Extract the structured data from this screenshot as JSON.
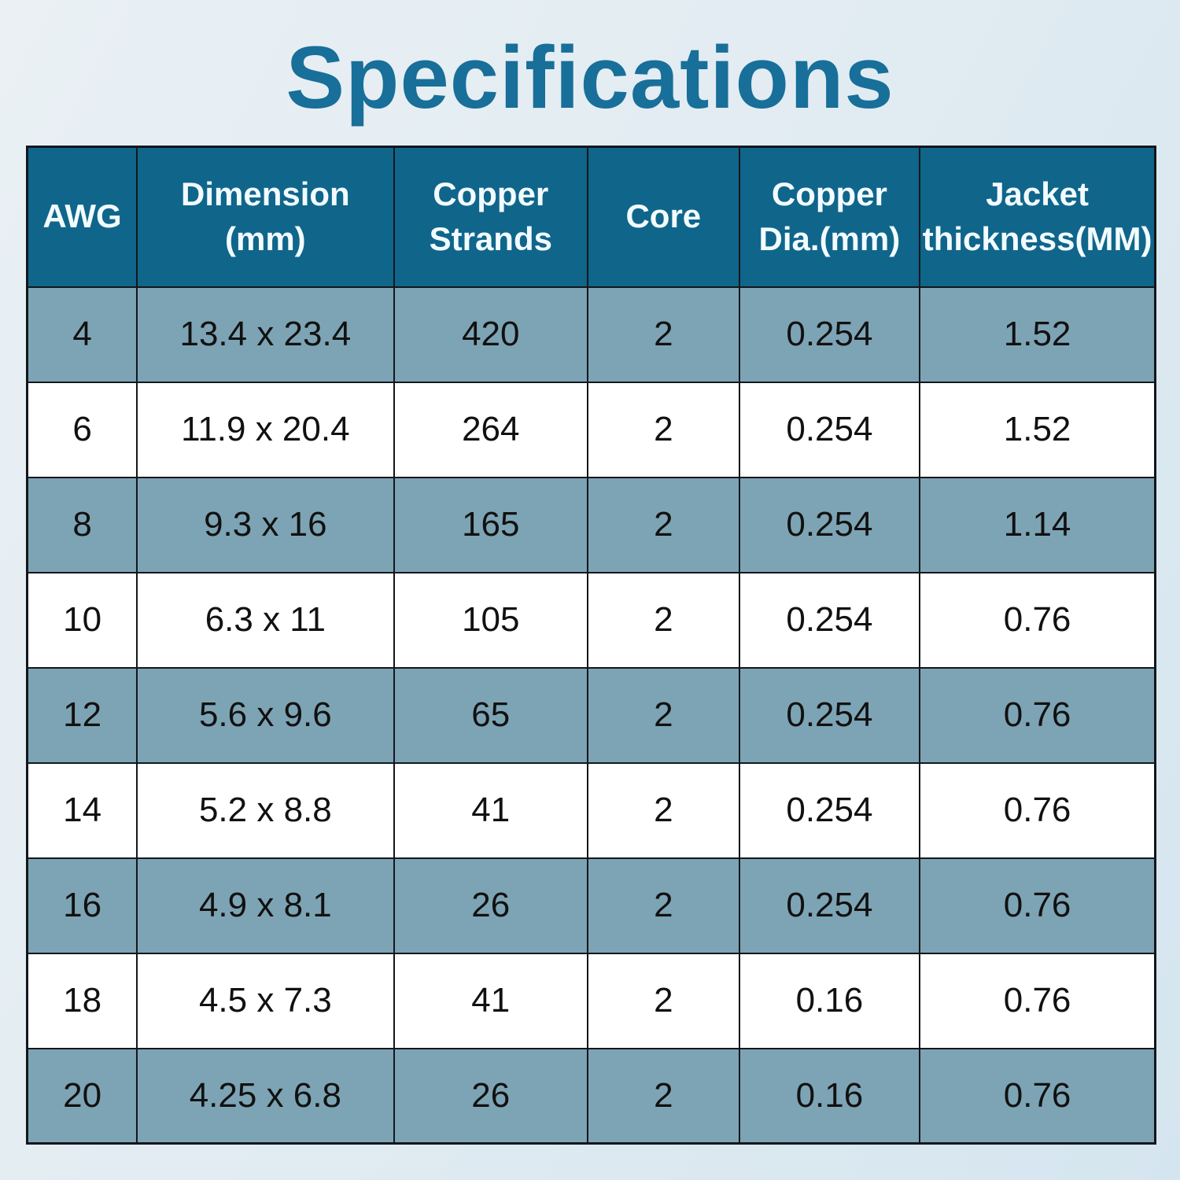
{
  "title": {
    "text": "Specifications"
  },
  "colors": {
    "title": "#186f99",
    "header_bg": "#10658b",
    "header_text": "#f2fbff",
    "row_alt_bg": "#7da4b4",
    "row_bg": "#ffffff",
    "border": "#12171c",
    "cell_text": "#111111",
    "background_start": "#eaf0f4",
    "background_end": "#d5e5ef"
  },
  "table": {
    "headers": [
      "AWG",
      "Dimension\n(mm)",
      "Copper\nStrands",
      "Core",
      "Copper\nDia.(mm)",
      "Jacket\nthickness(MM)"
    ],
    "rows": [
      {
        "cells": [
          "4",
          "13.4 x 23.4",
          "420",
          "2",
          "0.254",
          "1.52"
        ]
      },
      {
        "cells": [
          "6",
          "11.9 x 20.4",
          "264",
          "2",
          "0.254",
          "1.52"
        ]
      },
      {
        "cells": [
          "8",
          "9.3 x 16",
          "165",
          "2",
          "0.254",
          "1.14"
        ]
      },
      {
        "cells": [
          "10",
          "6.3 x 11",
          "105",
          "2",
          "0.254",
          "0.76"
        ]
      },
      {
        "cells": [
          "12",
          "5.6 x 9.6",
          "65",
          "2",
          "0.254",
          "0.76"
        ]
      },
      {
        "cells": [
          "14",
          "5.2 x 8.8",
          "41",
          "2",
          "0.254",
          "0.76"
        ]
      },
      {
        "cells": [
          "16",
          "4.9 x 8.1",
          "26",
          "2",
          "0.254",
          "0.76"
        ]
      },
      {
        "cells": [
          "18",
          "4.5 x 7.3",
          "41",
          "2",
          "0.16",
          "0.76"
        ]
      },
      {
        "cells": [
          "20",
          "4.25 x 6.8",
          "26",
          "2",
          "0.16",
          "0.76"
        ]
      }
    ]
  }
}
